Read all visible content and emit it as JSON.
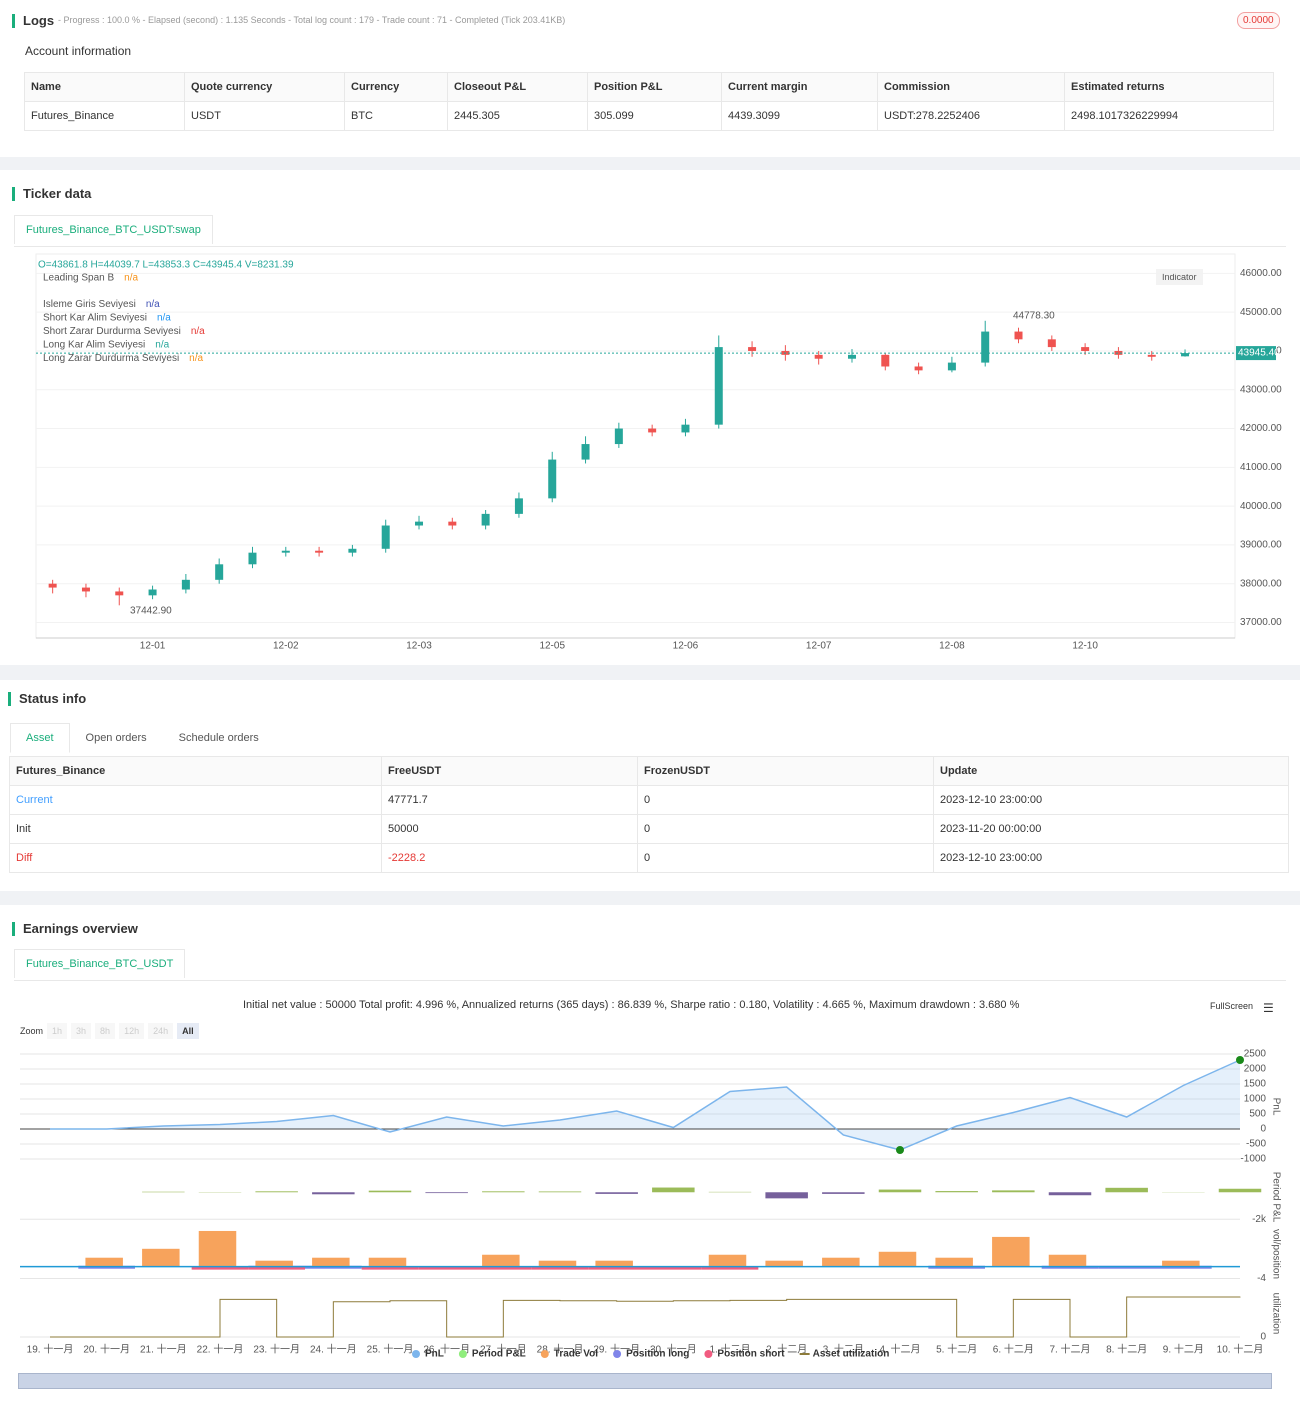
{
  "logs": {
    "title": "Logs",
    "summary": "- Progress : 100.0 % - Elapsed (second) : 1.135  Seconds - Total log count : 179 - Trade count : 71 - Completed (Tick 203.41KB)",
    "badge": "0.0000",
    "account_title": "Account information",
    "table": {
      "headers": [
        "Name",
        "Quote currency",
        "Currency",
        "Closeout P&L",
        "Position P&L",
        "Current margin",
        "Commission",
        "Estimated returns"
      ],
      "rows": [
        [
          "Futures_Binance",
          "USDT",
          "BTC",
          "2445.305",
          "305.099",
          "4439.3099",
          "USDT:278.2252406",
          "2498.1017326229994"
        ]
      ]
    }
  },
  "ticker": {
    "title": "Ticker data",
    "tab": "Futures_Binance_BTC_USDT:swap",
    "ohlc": "O=43861.8 H=44039.7 L=43853.3 C=43945.4 V=8231.39",
    "indicator_button": "Indicator",
    "indicators": [
      {
        "name": "Leading Span B",
        "value": "n/a",
        "color": "#f7931a"
      },
      {
        "name": "Isleme Giris Seviyesi",
        "value": "n/a",
        "color": "#3f51b5"
      },
      {
        "name": "Short Kar Alim Seviyesi",
        "value": "n/a",
        "color": "#2196f3"
      },
      {
        "name": "Short Zarar Durdurma Seviyesi",
        "value": "n/a",
        "color": "#e53935"
      },
      {
        "name": "Long Kar Alim Seviyesi",
        "value": "n/a",
        "color": "#26a69a"
      },
      {
        "name": "Long Zarar Durdurma Seviyesi",
        "value": "n/a",
        "color": "#f7931a"
      }
    ],
    "low_annotation": "37442.90",
    "high_annotation": "44778.30"
  },
  "status": {
    "title": "Status info",
    "tabs": [
      "Asset",
      "Open orders",
      "Schedule orders"
    ],
    "table": {
      "headers": [
        "Futures_Binance",
        "FreeUSDT",
        "FrozenUSDT",
        "Update"
      ],
      "rows": [
        [
          "Current",
          "47771.7",
          "0",
          "2023-12-10 23:00:00"
        ],
        [
          "Init",
          "50000",
          "0",
          "2023-11-20 00:00:00"
        ],
        [
          "Diff",
          "-2228.2",
          "0",
          "2023-12-10 23:00:00"
        ]
      ]
    }
  },
  "earnings": {
    "title": "Earnings overview",
    "tab": "Futures_Binance_BTC_USDT",
    "summary": "Initial net value : 50000 Total profit: 4.996 %, Annualized returns (365 days) : 86.839 %, Sharpe ratio : 0.180, Volatility : 4.665 %, Maximum drawdown : 3.680 %",
    "fullscreen": "FullScreen",
    "zoom_label": "Zoom",
    "zoom_buttons": [
      "1h",
      "3h",
      "8h",
      "12h",
      "24h",
      "All"
    ]
  },
  "chart_data": [
    {
      "type": "candlestick",
      "up_color": "#26a69a",
      "down_color": "#ef5350",
      "categories": [
        null,
        null,
        null,
        "12-01",
        null,
        null,
        null,
        "12-02",
        null,
        null,
        null,
        "12-03",
        null,
        null,
        null,
        "12-05",
        null,
        null,
        null,
        "12-06",
        null,
        null,
        null,
        "12-07",
        null,
        null,
        null,
        "12-08",
        null,
        null,
        null,
        "12-10",
        null,
        null,
        null
      ],
      "open": [
        38000,
        37900,
        37800,
        37700,
        37850,
        38100,
        38500,
        38800,
        38850,
        38800,
        38900,
        39500,
        39600,
        39500,
        39800,
        40200,
        41200,
        41600,
        42000,
        41900,
        42100,
        44100,
        44000,
        43900,
        43800,
        43900,
        43600,
        43500,
        43700,
        44500,
        44300,
        44100,
        44000,
        43900,
        43861.8
      ],
      "high": [
        38100,
        38000,
        37900,
        37950,
        38250,
        38650,
        38950,
        38950,
        38950,
        39000,
        39650,
        39750,
        39700,
        39900,
        40350,
        41400,
        41800,
        42150,
        42100,
        42250,
        44400,
        44250,
        44150,
        44000,
        44050,
        43950,
        43700,
        43850,
        44778.3,
        44600,
        44400,
        44200,
        44100,
        44000,
        44039.7
      ],
      "low": [
        37750,
        37650,
        37442.9,
        37600,
        37750,
        38000,
        38400,
        38700,
        38700,
        38700,
        38800,
        39400,
        39400,
        39400,
        39700,
        40100,
        41100,
        41500,
        41800,
        41800,
        42000,
        43850,
        43750,
        43650,
        43700,
        43500,
        43400,
        43450,
        43600,
        44200,
        44000,
        43900,
        43800,
        43750,
        43853.3
      ],
      "close": [
        37900,
        37800,
        37700,
        37850,
        38100,
        38500,
        38800,
        38850,
        38800,
        38900,
        39500,
        39600,
        39500,
        39800,
        40200,
        41200,
        41600,
        42000,
        41900,
        42100,
        44100,
        44000,
        43900,
        43800,
        43900,
        43600,
        43500,
        43700,
        44500,
        44300,
        44100,
        44000,
        43900,
        43850,
        43945.4
      ],
      "ylim": [
        36600,
        46500
      ],
      "yticks": [
        {
          "value": 37000,
          "label": "37000.00"
        },
        {
          "value": 38000,
          "label": "38000.00"
        },
        {
          "value": 39000,
          "label": "39000.00"
        },
        {
          "value": 40000,
          "label": "40000.00"
        },
        {
          "value": 41000,
          "label": "41000.00"
        },
        {
          "value": 42000,
          "label": "42000.00"
        },
        {
          "value": 43000,
          "label": "43000.00"
        },
        {
          "value": 44000,
          "label": "44000.00"
        },
        {
          "value": 45000,
          "label": "45000.00"
        },
        {
          "value": 46000,
          "label": "46000.00"
        }
      ],
      "last_price": {
        "value": 43945.4,
        "label": "43945.40"
      }
    },
    {
      "type": "area",
      "name": "PnL",
      "axis_label": "PnL",
      "color": "#7cb5ec",
      "categories": [
        "19. 十一月",
        "20. 十一月",
        "21. 十一月",
        "22. 十一月",
        "23. 十一月",
        "24. 十一月",
        "25. 十一月",
        "26. 十一月",
        "27. 十一月",
        "28. 十一月",
        "29. 十一月",
        "30. 十一月",
        "1. 十二月",
        "2. 十二月",
        "3. 十二月",
        "4. 十二月",
        "5. 十二月",
        "6. 十二月",
        "7. 十二月",
        "8. 十二月",
        "9. 十二月",
        "10. 十二月"
      ],
      "values": [
        0,
        0,
        100,
        150,
        250,
        450,
        -100,
        400,
        100,
        300,
        600,
        50,
        1250,
        1400,
        -200,
        -700,
        100,
        550,
        1050,
        400,
        1450,
        2300
      ],
      "ylim": [
        -1200,
        2700
      ],
      "yticks": [
        -1000,
        -500,
        0,
        500,
        1000,
        1500,
        2000,
        2500
      ]
    },
    {
      "type": "bar",
      "name": "Period P&L",
      "axis_label": "Period P&L",
      "color": "#90ed7d",
      "positive_color": "#9bbb59",
      "negative_color": "#76609b",
      "values": [
        0,
        0,
        40,
        20,
        70,
        -150,
        120,
        -60,
        70,
        60,
        -120,
        350,
        30,
        -450,
        -120,
        200,
        90,
        140,
        -220,
        330,
        15,
        260
      ],
      "ylim": [
        -2200,
        1500
      ],
      "yticks": [
        {
          "value": -2000,
          "label": "-2k"
        }
      ]
    },
    {
      "type": "bar",
      "name": "Trade Vol",
      "axis_label": "vol/position",
      "color": "#f7a35c",
      "values": [
        0,
        3,
        6,
        12,
        2,
        3,
        3,
        0,
        4,
        2,
        2,
        0,
        4,
        2,
        3,
        5,
        3,
        10,
        4,
        0,
        2,
        0
      ],
      "ylim": [
        -4.5,
        13
      ],
      "yticks": [
        -4
      ],
      "series": [
        {
          "name": "Position long",
          "color": "#8085e9",
          "values": [
            0,
            1,
            0,
            0,
            1,
            1,
            0,
            0,
            0,
            0,
            0,
            0,
            0,
            0,
            0,
            0,
            1,
            0,
            1,
            1,
            1,
            0
          ]
        },
        {
          "name": "Position short",
          "color": "#f15c80",
          "values": [
            0,
            0,
            0,
            -1,
            -1,
            0,
            -1,
            -1,
            -1,
            -1,
            -1,
            -1,
            -1,
            0,
            0,
            0,
            0,
            0,
            0,
            0,
            0,
            0
          ]
        }
      ]
    },
    {
      "type": "step",
      "name": "Asset utilization",
      "axis_label": "utilization",
      "color": "#8d7b3a",
      "values": [
        0,
        0,
        0,
        0.8,
        0,
        0.75,
        0.77,
        0,
        0.78,
        0.77,
        0.76,
        0.77,
        0.78,
        0.8,
        0.8,
        0.8,
        0,
        0.8,
        0,
        0.85,
        0.85,
        0.86
      ],
      "ylim": [
        0,
        1
      ],
      "yticks": [
        0
      ]
    }
  ]
}
